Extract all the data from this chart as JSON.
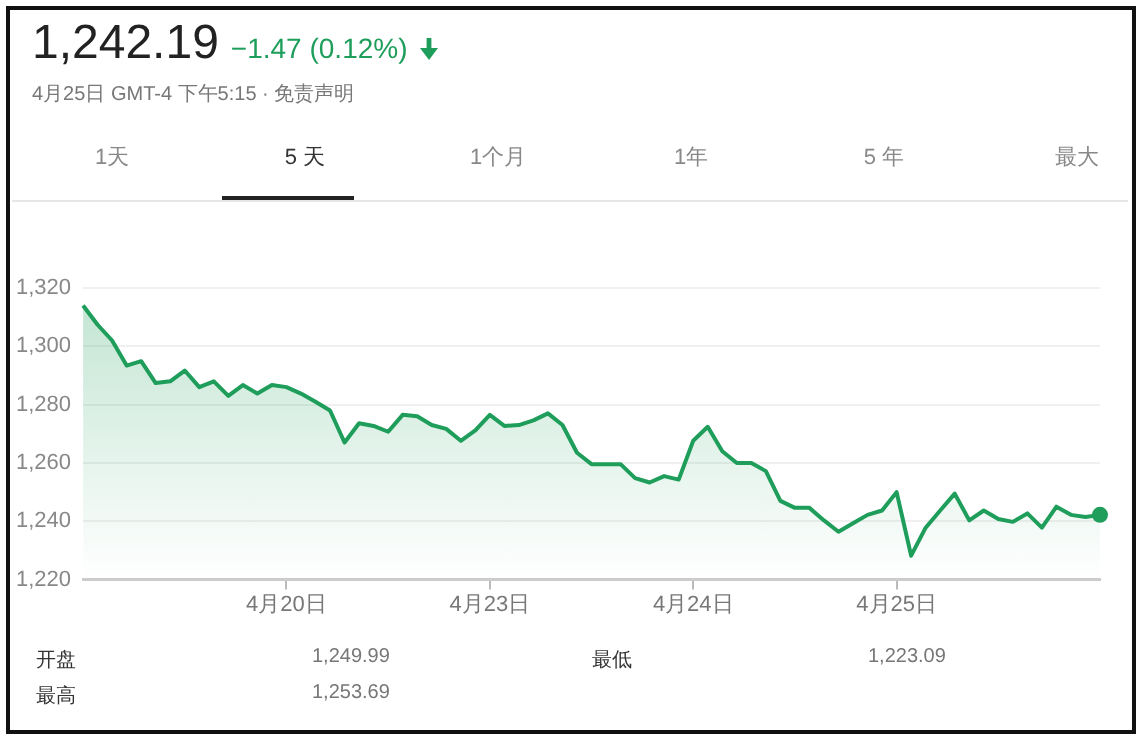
{
  "chart_data": {
    "type": "area",
    "title": "1,242.19",
    "subtitle": "−1.47 (0.12%)",
    "annotations": [
      "4月25日 GMT-4 下午5:15 · 免责声明",
      "1天",
      "5 天",
      "1个月",
      "1年",
      "5 年",
      "最大",
      "开盘",
      "1,249.99",
      "最低",
      "1,223.09",
      "最高",
      "1,253.69"
    ],
    "categories": [
      null,
      null,
      null,
      null,
      null,
      null,
      null,
      null,
      null,
      null,
      null,
      null,
      null,
      null,
      "4月20日",
      null,
      null,
      null,
      null,
      null,
      null,
      null,
      null,
      null,
      null,
      null,
      null,
      null,
      "4月23日",
      null,
      null,
      null,
      null,
      null,
      null,
      null,
      null,
      null,
      null,
      null,
      null,
      null,
      "4月24日",
      null,
      null,
      null,
      null,
      null,
      null,
      null,
      null,
      null,
      null,
      null,
      null,
      null,
      "4月25日",
      null,
      null,
      null,
      null,
      null,
      null,
      null,
      null,
      null,
      null,
      null,
      null,
      null,
      null
    ],
    "series": [
      {
        "color": "#1e9e5a",
        "values": [
          1314,
          1307.4,
          1302,
          1293.4,
          1294.9,
          1287.4,
          1288,
          1291.7,
          1286,
          1288,
          1283,
          1286.7,
          1283.8,
          1286.7,
          1286,
          1283.8,
          1281,
          1278,
          1267,
          1273.6,
          1272.7,
          1270.7,
          1276.5,
          1276,
          1273,
          1271.7,
          1267.6,
          1271.2,
          1276.5,
          1272.7,
          1273,
          1274.6,
          1277,
          1273,
          1263.5,
          1259.6,
          1259.6,
          1259.6,
          1254.8,
          1253.3,
          1255.5,
          1254.3,
          1267.6,
          1272.4,
          1264,
          1260,
          1260,
          1257.2,
          1247,
          1244.6,
          1244.6,
          1240.3,
          1236.4,
          1239.3,
          1242.2,
          1243.7,
          1250,
          1228.2,
          1237.8,
          1243.7,
          1249.5,
          1240.3,
          1243.7,
          1240.8,
          1239.8,
          1242.7,
          1237.8,
          1245,
          1242.2,
          1241.5,
          1242.2
        ]
      }
    ],
    "ylim": [
      1220,
      1320
    ],
    "yticks": [
      {
        "value": 1220,
        "label": "1,220"
      },
      {
        "value": 1240,
        "label": "1,240"
      },
      {
        "value": 1260,
        "label": "1,260"
      },
      {
        "value": 1280,
        "label": "1,280"
      },
      {
        "value": 1300,
        "label": "1,300"
      },
      {
        "value": 1320,
        "label": "1,320"
      }
    ],
    "grid": "y",
    "legend": false
  }
}
